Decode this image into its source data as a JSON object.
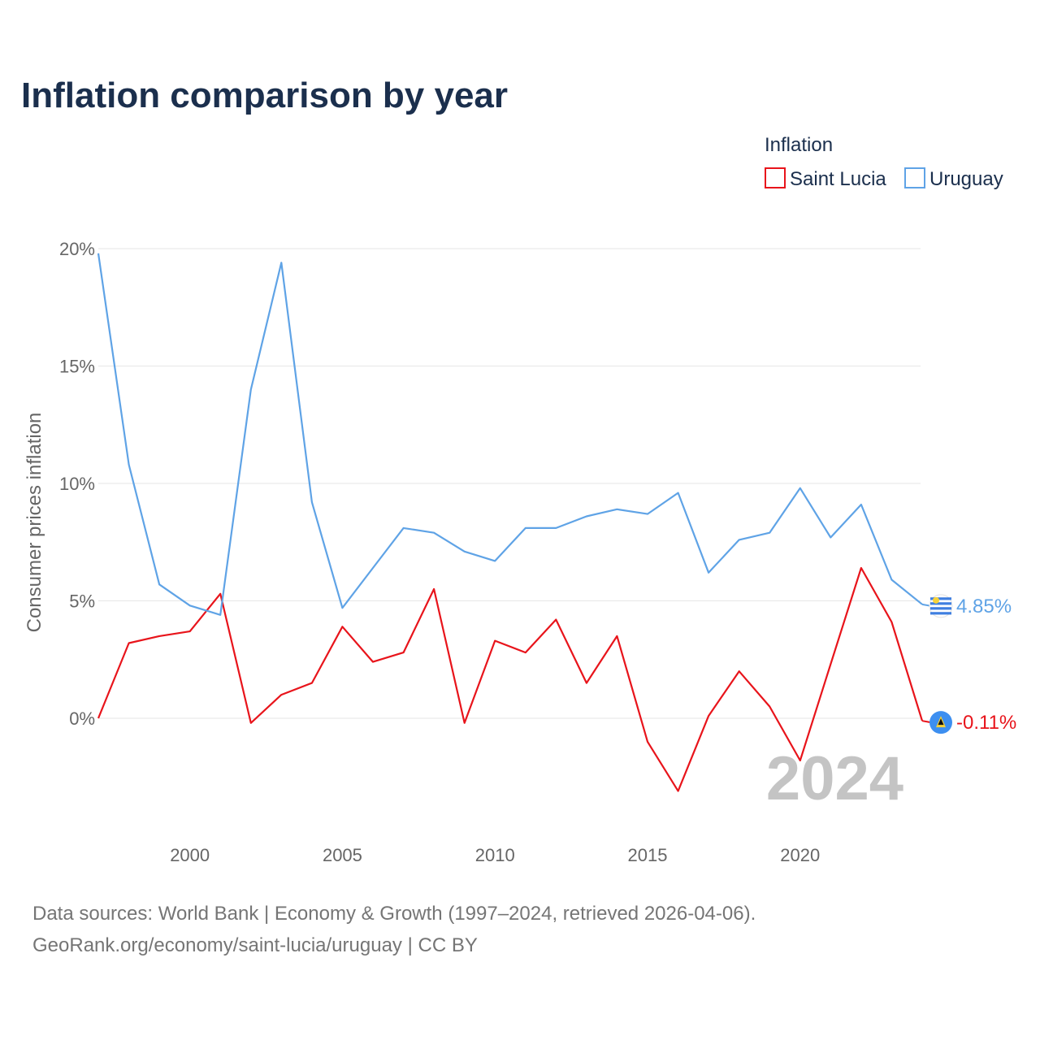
{
  "chart_data": {
    "type": "line",
    "title": "Inflation comparison by year",
    "legend_title": "Inflation",
    "ylabel": "Consumer prices inflation",
    "xlabel": "",
    "x": [
      1997,
      1998,
      1999,
      2000,
      2001,
      2002,
      2003,
      2004,
      2005,
      2006,
      2007,
      2008,
      2009,
      2010,
      2011,
      2012,
      2013,
      2014,
      2015,
      2016,
      2017,
      2018,
      2019,
      2020,
      2021,
      2022,
      2023,
      2024
    ],
    "xlim": [
      1997,
      2024
    ],
    "ylim": [
      -4.5,
      20
    ],
    "y_ticks": [
      0,
      5,
      10,
      15,
      20
    ],
    "y_tick_labels": [
      "0%",
      "5%",
      "10%",
      "15%",
      "20%"
    ],
    "x_ticks": [
      2000,
      2005,
      2010,
      2015,
      2020
    ],
    "x_tick_labels": [
      "2000",
      "2005",
      "2010",
      "2015",
      "2020"
    ],
    "series": [
      {
        "name": "Saint Lucia",
        "color": "#e8141b",
        "values": [
          0.0,
          3.2,
          3.5,
          3.7,
          5.3,
          -0.2,
          1.0,
          1.5,
          3.9,
          2.4,
          2.8,
          5.5,
          -0.2,
          3.3,
          2.8,
          4.2,
          1.5,
          3.5,
          -1.0,
          -3.1,
          0.1,
          2.0,
          0.5,
          -1.8,
          2.3,
          6.4,
          4.1,
          -0.11
        ],
        "end_label": "-0.11%",
        "flag_icon": "saint-lucia-flag-icon"
      },
      {
        "name": "Uruguay",
        "color": "#5fa3e6",
        "values": [
          19.8,
          10.8,
          5.7,
          4.8,
          4.4,
          14.0,
          19.4,
          9.2,
          4.7,
          6.4,
          8.1,
          7.9,
          7.1,
          6.7,
          8.1,
          8.1,
          8.6,
          8.9,
          8.7,
          9.6,
          6.2,
          7.6,
          7.9,
          9.8,
          7.7,
          9.1,
          5.9,
          4.85
        ],
        "end_label": "4.85%",
        "flag_icon": "uruguay-flag-icon"
      }
    ],
    "watermark_year": "2024",
    "legend_position": "top-right",
    "grid": true
  },
  "footer": {
    "source_line": "Data sources: World Bank | Economy & Growth (1997–2024, retrieved 2026-04-06).",
    "credit_line": "GeoRank.org/economy/saint-lucia/uruguay | CC BY"
  }
}
